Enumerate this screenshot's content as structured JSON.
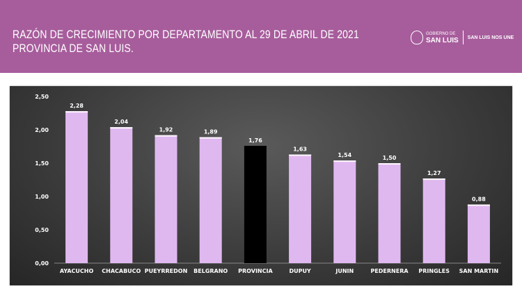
{
  "header": {
    "title_line1": "RAZÓN DE CRECIMIENTO POR DEPARTAMENTO AL 29 DE ABRIL DE 2021",
    "title_line2": "PROVINCIA DE SAN LUIS.",
    "logo_small": "GOBIERNO DE",
    "logo_big": "SAN LUIS",
    "slogan": "SAN LUIS NOS UNE",
    "background": "#a75d9c"
  },
  "chart_data": {
    "type": "bar",
    "categories": [
      "AYACUCHO",
      "CHACABUCO",
      "PUEYRREDON",
      "BELGRANO",
      "PROVINCIA",
      "DUPUY",
      "JUNIN",
      "PEDERNERA",
      "PRINGLES",
      "SAN MARTIN"
    ],
    "values": [
      2.28,
      2.04,
      1.92,
      1.89,
      1.76,
      1.63,
      1.54,
      1.5,
      1.27,
      0.88
    ],
    "data_labels": [
      "2,28",
      "2,04",
      "1,92",
      "1,89",
      "1,76",
      "1,63",
      "1,54",
      "1,50",
      "1,27",
      "0,88"
    ],
    "ylim": [
      0,
      2.5
    ],
    "yticks": [
      "0,00",
      "0,50",
      "1,00",
      "1,50",
      "2,00",
      "2,50"
    ],
    "grid": false,
    "bar_color": "#e0b8f0",
    "highlight_category": "PROVINCIA",
    "highlight_color": "#000000"
  }
}
